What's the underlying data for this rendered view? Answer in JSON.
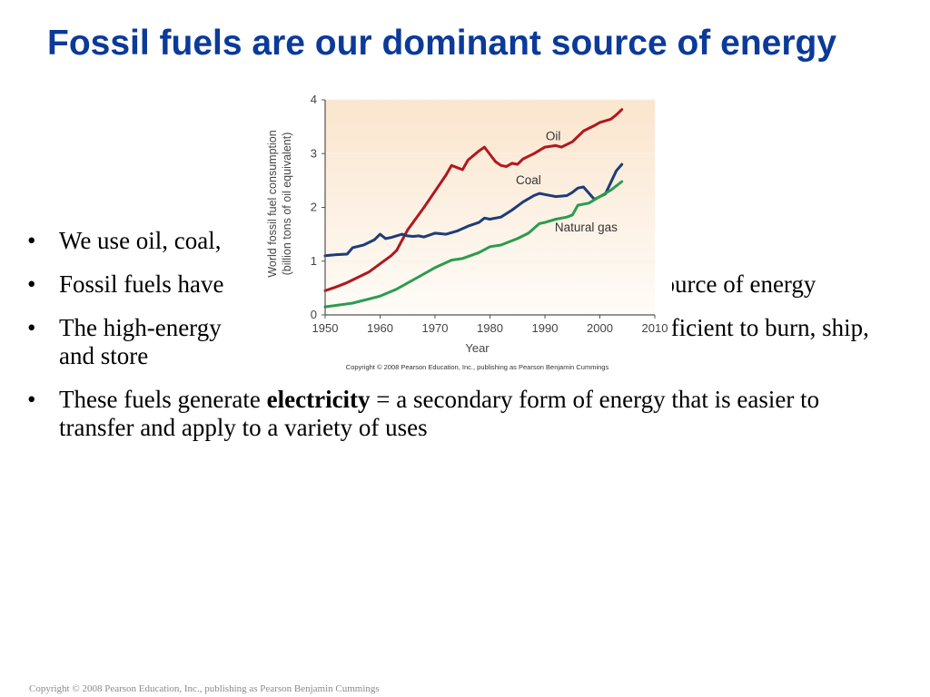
{
  "slide": {
    "title": "Fossil fuels are our dominant source of energy",
    "bullets": [
      {
        "text": "We use oil, coal,"
      },
      {
        "text": "Fossil fuels have",
        "tail": "nt source of energy"
      },
      {
        "text": "The high-energy",
        "tail": "m efficient to burn, ship, and store"
      },
      {
        "pre": "These fuels generate ",
        "bold": "electricity",
        "post": " = a secondary form of energy that is easier to transfer and apply to a variety of uses"
      }
    ],
    "footer": "Copyright © 2008 Pearson Education, Inc., publishing as Pearson Benjamin Cummings"
  },
  "chart_data": {
    "type": "line",
    "xlabel": "Year",
    "ylabel": "World fossil fuel consumption (billion tons of oil equivalent)",
    "xlim": [
      1950,
      2010
    ],
    "ylim": [
      0,
      4
    ],
    "xticks": [
      1950,
      1960,
      1970,
      1980,
      1990,
      2000,
      2010
    ],
    "yticks": [
      0,
      1,
      2,
      3,
      4
    ],
    "copyright": "Copyright © 2008 Pearson Education, Inc., publishing as Pearson Benjamin Cummings",
    "series": [
      {
        "name": "Oil",
        "color": "#b0181f",
        "x": [
          1950,
          1952,
          1954,
          1956,
          1958,
          1960,
          1962,
          1963,
          1965,
          1966,
          1968,
          1970,
          1972,
          1973,
          1975,
          1976,
          1978,
          1979,
          1981,
          1982,
          1983,
          1984,
          1985,
          1986,
          1988,
          1990,
          1992,
          1993,
          1995,
          1997,
          1999,
          2000,
          2002,
          2003,
          2004
        ],
        "y": [
          0.45,
          0.52,
          0.6,
          0.7,
          0.8,
          0.95,
          1.1,
          1.2,
          1.58,
          1.72,
          2.0,
          2.3,
          2.6,
          2.78,
          2.7,
          2.88,
          3.05,
          3.12,
          2.85,
          2.78,
          2.76,
          2.82,
          2.8,
          2.9,
          3.0,
          3.12,
          3.15,
          3.12,
          3.22,
          3.42,
          3.52,
          3.58,
          3.64,
          3.72,
          3.82
        ]
      },
      {
        "name": "Coal",
        "color": "#1e3c78",
        "x": [
          1950,
          1952,
          1954,
          1955,
          1957,
          1959,
          1960,
          1961,
          1962,
          1964,
          1965,
          1966,
          1967,
          1968,
          1970,
          1972,
          1974,
          1976,
          1978,
          1979,
          1980,
          1982,
          1984,
          1986,
          1988,
          1989,
          1990,
          1992,
          1994,
          1995,
          1996,
          1997,
          1999,
          2001,
          2003,
          2004
        ],
        "y": [
          1.1,
          1.12,
          1.13,
          1.25,
          1.3,
          1.4,
          1.5,
          1.42,
          1.44,
          1.5,
          1.47,
          1.46,
          1.47,
          1.45,
          1.52,
          1.5,
          1.56,
          1.65,
          1.72,
          1.8,
          1.78,
          1.82,
          1.95,
          2.1,
          2.22,
          2.26,
          2.24,
          2.2,
          2.22,
          2.28,
          2.36,
          2.38,
          2.15,
          2.25,
          2.68,
          2.8
        ]
      },
      {
        "name": "Natural gas",
        "color": "#2b9c4f",
        "x": [
          1950,
          1955,
          1960,
          1963,
          1966,
          1970,
          1973,
          1975,
          1978,
          1980,
          1982,
          1983,
          1985,
          1987,
          1989,
          1990,
          1992,
          1994,
          1995,
          1996,
          1998,
          2000,
          2002,
          2004
        ],
        "y": [
          0.15,
          0.22,
          0.35,
          0.48,
          0.65,
          0.88,
          1.02,
          1.05,
          1.16,
          1.27,
          1.3,
          1.34,
          1.42,
          1.52,
          1.7,
          1.72,
          1.78,
          1.82,
          1.86,
          2.04,
          2.08,
          2.2,
          2.32,
          2.48
        ]
      }
    ]
  }
}
